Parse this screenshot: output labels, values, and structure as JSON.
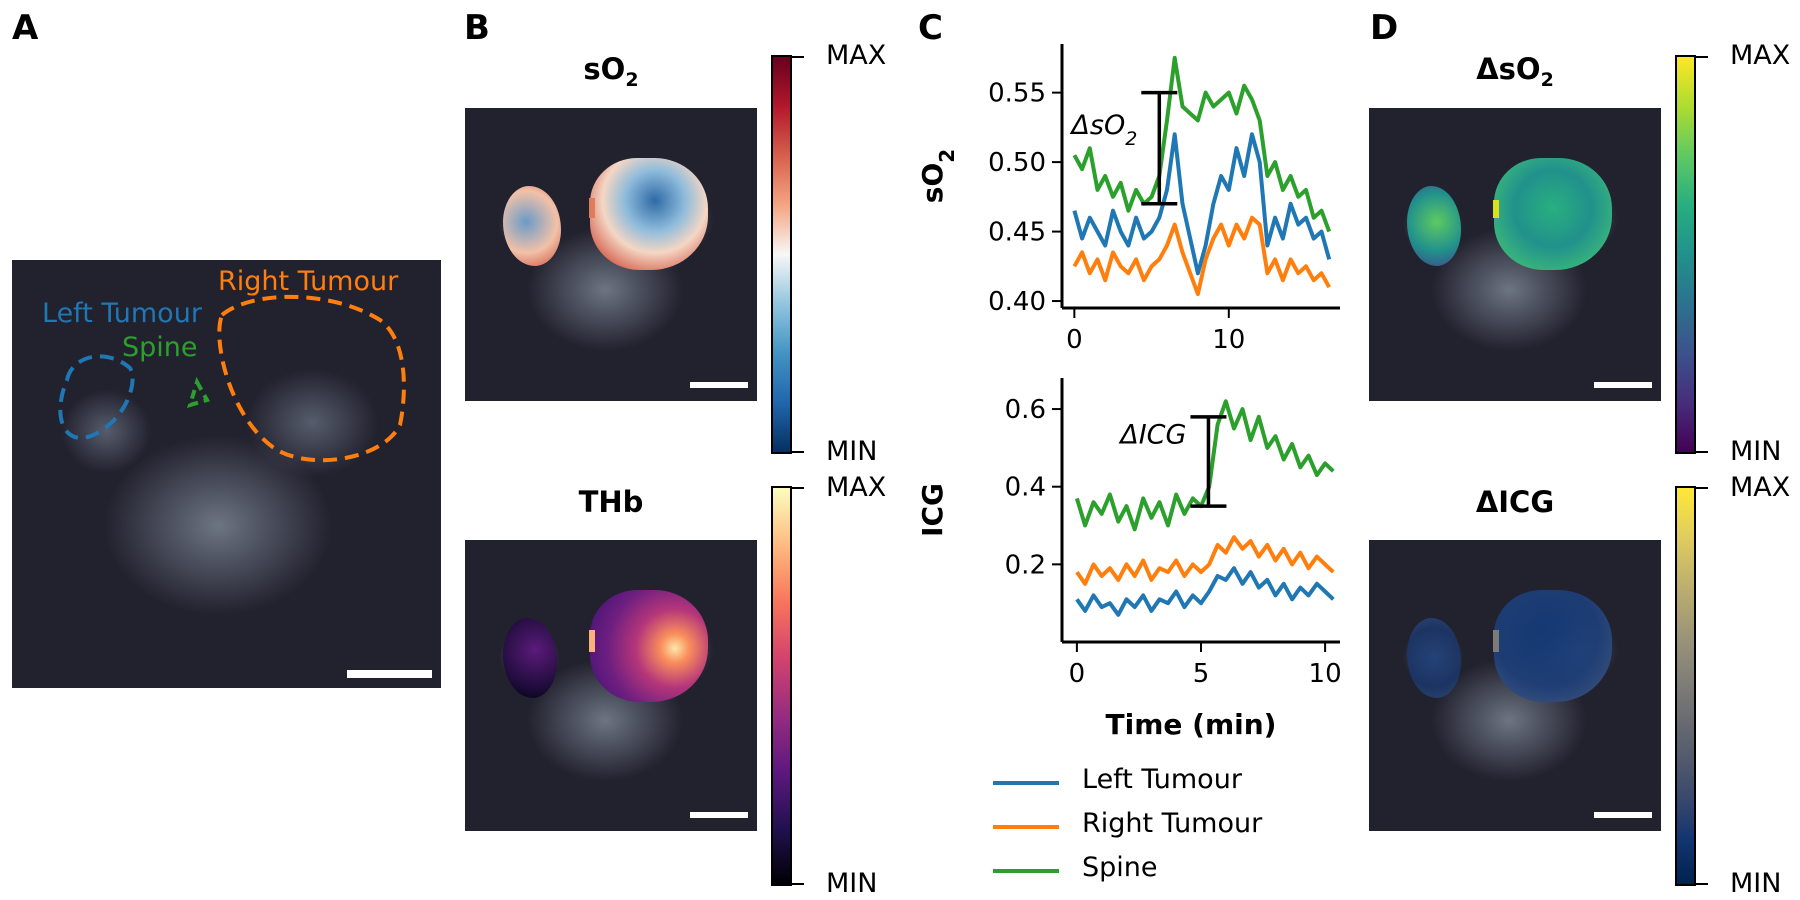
{
  "panels": {
    "a": {
      "letter": "A",
      "labels": {
        "left_tumour": "Left Tumour",
        "right_tumour": "Right Tumour",
        "spine": "Spine"
      }
    },
    "b": {
      "letter": "B",
      "so2": {
        "title_main": "sO",
        "title_sub": "2",
        "cb_max": "MAX",
        "cb_min": "MIN"
      },
      "thb": {
        "title": "THb",
        "cb_max": "MAX",
        "cb_min": "MIN"
      }
    },
    "c": {
      "letter": "C"
    },
    "d": {
      "letter": "D",
      "dso2": {
        "title_main": "ΔsO",
        "title_sub": "2",
        "cb_max": "MAX",
        "cb_min": "MIN"
      },
      "dicg": {
        "title": "ΔICG",
        "cb_max": "MAX",
        "cb_min": "MIN"
      }
    }
  },
  "colors": {
    "left_tumour": "#1f77b4",
    "right_tumour": "#ff7f0e",
    "spine": "#2ca02c"
  },
  "colormaps": {
    "so2": "RdBu_r",
    "thb": "magma",
    "dso2": "viridis",
    "dicg": "cividis"
  },
  "legend": [
    {
      "name": "Left Tumour",
      "color": "#1f77b4"
    },
    {
      "name": "Right Tumour",
      "color": "#ff7f0e"
    },
    {
      "name": "Spine",
      "color": "#2ca02c"
    }
  ],
  "chart_data": [
    {
      "type": "line",
      "ylabel_main": "sO",
      "ylabel_sub": "2",
      "xlim": [
        -0.8,
        17.2
      ],
      "ylim": [
        0.395,
        0.585
      ],
      "xticks": [
        0,
        10
      ],
      "yticks": [
        0.4,
        0.45,
        0.5,
        0.55
      ],
      "ytick_labels": [
        "0.40",
        "0.45",
        "0.50",
        "0.55"
      ],
      "annotation": {
        "text_main": "ΔsO",
        "text_sub": "2",
        "x": 5.5,
        "y_low": 0.47,
        "y_high": 0.55
      },
      "series": [
        {
          "name": "Left Tumour",
          "color": "#1f77b4",
          "x": [
            0,
            0.5,
            1,
            1.5,
            2,
            2.5,
            3,
            3.5,
            4,
            4.5,
            5,
            5.5,
            6,
            6.5,
            7,
            7.5,
            8,
            8.5,
            9,
            9.5,
            10,
            10.5,
            11,
            11.5,
            12,
            12.5,
            13,
            13.5,
            14,
            14.5,
            15,
            15.5,
            16,
            16.5
          ],
          "y": [
            0.465,
            0.445,
            0.46,
            0.45,
            0.44,
            0.465,
            0.45,
            0.44,
            0.46,
            0.445,
            0.45,
            0.46,
            0.48,
            0.52,
            0.47,
            0.445,
            0.42,
            0.44,
            0.47,
            0.49,
            0.48,
            0.51,
            0.49,
            0.52,
            0.5,
            0.44,
            0.46,
            0.445,
            0.47,
            0.455,
            0.46,
            0.445,
            0.45,
            0.43
          ]
        },
        {
          "name": "Right Tumour",
          "color": "#ff7f0e",
          "x": [
            0,
            0.5,
            1,
            1.5,
            2,
            2.5,
            3,
            3.5,
            4,
            4.5,
            5,
            5.5,
            6,
            6.5,
            7,
            7.5,
            8,
            8.5,
            9,
            9.5,
            10,
            10.5,
            11,
            11.5,
            12,
            12.5,
            13,
            13.5,
            14,
            14.5,
            15,
            15.5,
            16,
            16.5
          ],
          "y": [
            0.425,
            0.435,
            0.42,
            0.43,
            0.415,
            0.435,
            0.425,
            0.42,
            0.43,
            0.415,
            0.425,
            0.43,
            0.44,
            0.455,
            0.435,
            0.42,
            0.405,
            0.43,
            0.445,
            0.455,
            0.44,
            0.455,
            0.445,
            0.46,
            0.455,
            0.42,
            0.43,
            0.415,
            0.43,
            0.42,
            0.425,
            0.415,
            0.42,
            0.41
          ]
        },
        {
          "name": "Spine",
          "color": "#2ca02c",
          "x": [
            0,
            0.5,
            1,
            1.5,
            2,
            2.5,
            3,
            3.5,
            4,
            4.5,
            5,
            5.5,
            6,
            6.5,
            7,
            7.5,
            8,
            8.5,
            9,
            9.5,
            10,
            10.5,
            11,
            11.5,
            12,
            12.5,
            13,
            13.5,
            14,
            14.5,
            15,
            15.5,
            16,
            16.5
          ],
          "y": [
            0.505,
            0.495,
            0.51,
            0.48,
            0.49,
            0.475,
            0.485,
            0.465,
            0.48,
            0.47,
            0.475,
            0.49,
            0.53,
            0.575,
            0.54,
            0.535,
            0.53,
            0.55,
            0.54,
            0.545,
            0.55,
            0.535,
            0.555,
            0.545,
            0.53,
            0.49,
            0.5,
            0.48,
            0.49,
            0.475,
            0.48,
            0.46,
            0.465,
            0.45
          ]
        }
      ]
    },
    {
      "type": "line",
      "ylabel": "ICG",
      "xlabel": "Time (min)",
      "xlim": [
        -0.6,
        10.6
      ],
      "ylim": [
        0.0,
        0.68
      ],
      "xticks": [
        0,
        5,
        10
      ],
      "yticks": [
        0.2,
        0.4,
        0.6
      ],
      "annotation": {
        "text_main": "ΔICG",
        "x": 5.3,
        "y_low": 0.35,
        "y_high": 0.58
      },
      "series": [
        {
          "name": "Left Tumour",
          "color": "#1f77b4",
          "x": [
            0,
            0.33,
            0.67,
            1,
            1.33,
            1.67,
            2,
            2.33,
            2.67,
            3,
            3.33,
            3.67,
            4,
            4.33,
            4.67,
            5,
            5.33,
            5.67,
            6,
            6.33,
            6.67,
            7,
            7.33,
            7.67,
            8,
            8.33,
            8.67,
            9,
            9.33,
            9.67,
            10,
            10.33
          ],
          "y": [
            0.11,
            0.08,
            0.12,
            0.09,
            0.1,
            0.07,
            0.11,
            0.09,
            0.12,
            0.08,
            0.11,
            0.1,
            0.13,
            0.09,
            0.12,
            0.1,
            0.13,
            0.17,
            0.16,
            0.19,
            0.15,
            0.18,
            0.14,
            0.16,
            0.12,
            0.15,
            0.11,
            0.14,
            0.12,
            0.15,
            0.13,
            0.11
          ]
        },
        {
          "name": "Right Tumour",
          "color": "#ff7f0e",
          "x": [
            0,
            0.33,
            0.67,
            1,
            1.33,
            1.67,
            2,
            2.33,
            2.67,
            3,
            3.33,
            3.67,
            4,
            4.33,
            4.67,
            5,
            5.33,
            5.67,
            6,
            6.33,
            6.67,
            7,
            7.33,
            7.67,
            8,
            8.33,
            8.67,
            9,
            9.33,
            9.67,
            10,
            10.33
          ],
          "y": [
            0.18,
            0.15,
            0.2,
            0.17,
            0.19,
            0.16,
            0.2,
            0.17,
            0.21,
            0.16,
            0.19,
            0.18,
            0.21,
            0.17,
            0.2,
            0.18,
            0.2,
            0.25,
            0.23,
            0.27,
            0.24,
            0.26,
            0.22,
            0.25,
            0.21,
            0.24,
            0.2,
            0.23,
            0.19,
            0.22,
            0.2,
            0.18
          ]
        },
        {
          "name": "Spine",
          "color": "#2ca02c",
          "x": [
            0,
            0.33,
            0.67,
            1,
            1.33,
            1.67,
            2,
            2.33,
            2.67,
            3,
            3.33,
            3.67,
            4,
            4.33,
            4.67,
            5,
            5.33,
            5.67,
            6,
            6.33,
            6.67,
            7,
            7.33,
            7.67,
            8,
            8.33,
            8.67,
            9,
            9.33,
            9.67,
            10,
            10.33
          ],
          "y": [
            0.37,
            0.3,
            0.36,
            0.33,
            0.38,
            0.31,
            0.35,
            0.29,
            0.37,
            0.32,
            0.36,
            0.3,
            0.38,
            0.33,
            0.37,
            0.35,
            0.4,
            0.56,
            0.62,
            0.55,
            0.6,
            0.52,
            0.58,
            0.5,
            0.53,
            0.47,
            0.51,
            0.45,
            0.48,
            0.43,
            0.46,
            0.44
          ]
        }
      ]
    }
  ]
}
